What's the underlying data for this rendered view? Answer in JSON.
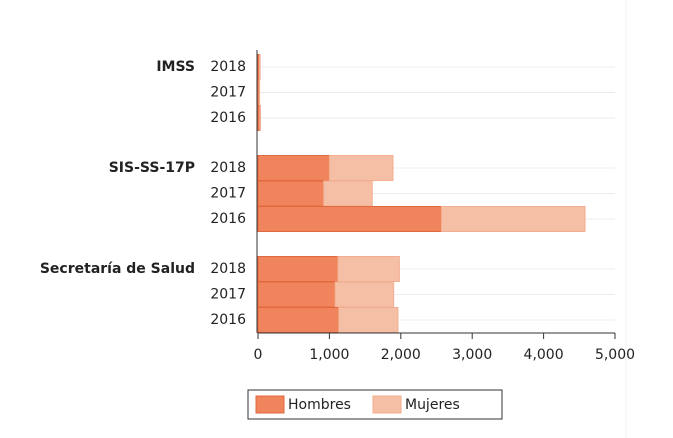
{
  "chart_data": {
    "type": "bar",
    "orientation": "horizontal",
    "stacked": true,
    "groups": [
      {
        "name": "IMSS",
        "categories": [
          "2018",
          "2017",
          "2016"
        ]
      },
      {
        "name": "SIS-SS-17P",
        "categories": [
          "2018",
          "2017",
          "2016"
        ]
      },
      {
        "name": "Secretaría de Salud",
        "categories": [
          "2018",
          "2017",
          "2016"
        ]
      }
    ],
    "series": [
      {
        "name": "Hombres",
        "color": "#f0845c",
        "values": [
          [
            20,
            15,
            25
          ],
          [
            1000,
            920,
            2570
          ],
          [
            1120,
            1080,
            1130
          ]
        ]
      },
      {
        "name": "Mujeres",
        "color": "#f5bfa6",
        "values": [
          [
            10,
            8,
            10
          ],
          [
            890,
            680,
            2010
          ],
          [
            860,
            820,
            830
          ]
        ]
      }
    ],
    "xlim": [
      0,
      5000
    ],
    "xticks": [
      0,
      {
        "value": 1000,
        "label": "1,000"
      },
      {
        "value": 2000,
        "label": "2,000"
      },
      {
        "value": 3000,
        "label": "3,000"
      },
      {
        "value": 4000,
        "label": "4,000"
      },
      {
        "value": 5000,
        "label": "5,000"
      }
    ],
    "grid": true,
    "legend": "bottom"
  }
}
